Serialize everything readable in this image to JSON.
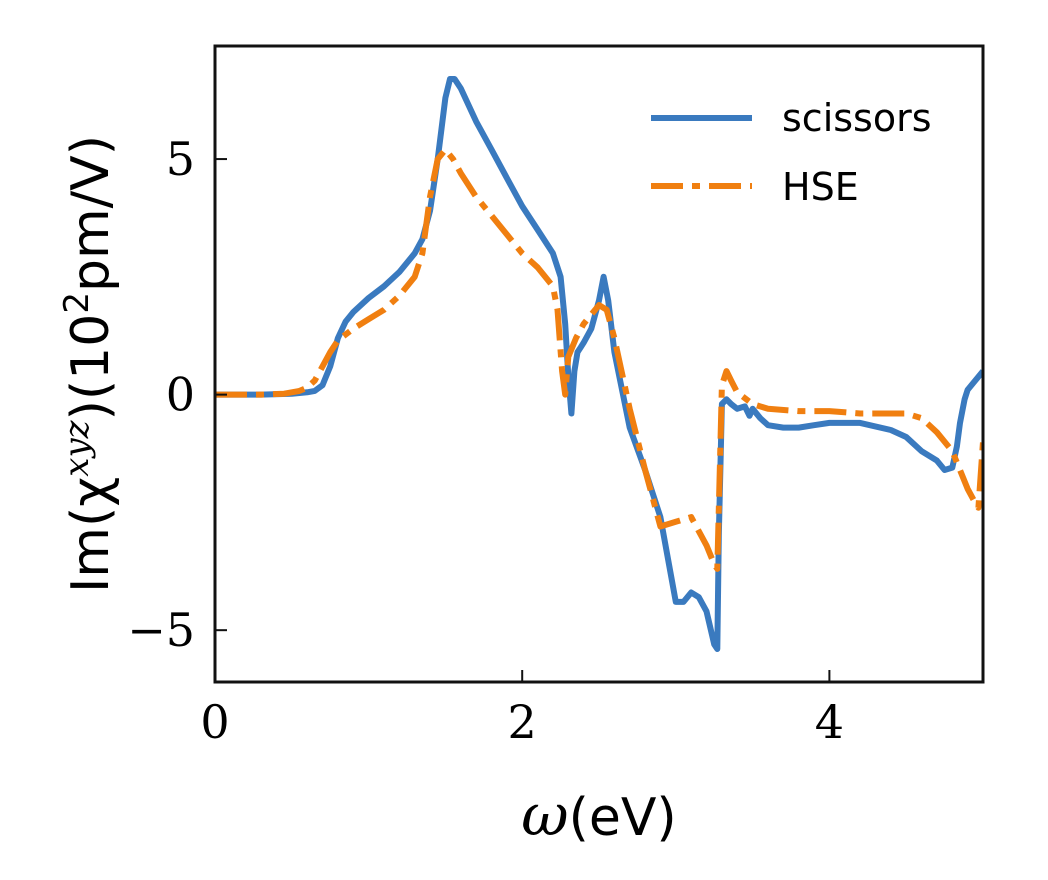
{
  "chart_data": {
    "type": "line",
    "xlabel": "ω(eV)",
    "ylabel": "Im(χ^xyz)(10²pm/V)",
    "ylabel_parts": {
      "prefix": "Im(χ",
      "sup": "xyz",
      "mid": ")(10",
      "sup2": "2",
      "suffix": "pm/V)"
    },
    "xlabel_parts": {
      "symbol": "ω",
      "unit": "(eV)"
    },
    "xlim": [
      0,
      5
    ],
    "ylim": [
      -6.1,
      7.4
    ],
    "xticks": [
      0,
      2,
      4
    ],
    "xtick_labels": [
      "0",
      "2",
      "4"
    ],
    "yticks": [
      -5,
      0,
      5
    ],
    "ytick_labels": [
      "−5",
      "0",
      "5"
    ],
    "grid": false,
    "legend_position": "top-right",
    "series": [
      {
        "name": "scissors",
        "color": "#3a7abf",
        "style": "solid",
        "x": [
          0,
          0.3,
          0.5,
          0.6,
          0.65,
          0.7,
          0.75,
          0.8,
          0.85,
          0.9,
          1.0,
          1.1,
          1.2,
          1.3,
          1.35,
          1.4,
          1.45,
          1.5,
          1.53,
          1.56,
          1.6,
          1.7,
          1.8,
          1.9,
          2.0,
          2.1,
          2.2,
          2.25,
          2.28,
          2.3,
          2.32,
          2.34,
          2.36,
          2.38,
          2.4,
          2.45,
          2.5,
          2.53,
          2.56,
          2.6,
          2.7,
          2.8,
          2.9,
          2.95,
          3.0,
          3.05,
          3.1,
          3.15,
          3.2,
          3.25,
          3.27,
          3.28,
          3.3,
          3.33,
          3.36,
          3.4,
          3.45,
          3.48,
          3.5,
          3.55,
          3.6,
          3.7,
          3.8,
          3.9,
          4.0,
          4.2,
          4.4,
          4.5,
          4.6,
          4.7,
          4.75,
          4.8,
          4.83,
          4.85,
          4.88,
          4.9,
          4.95,
          5.0
        ],
        "y": [
          0,
          0,
          0.02,
          0.05,
          0.08,
          0.2,
          0.6,
          1.2,
          1.55,
          1.75,
          2.05,
          2.3,
          2.6,
          3.0,
          3.3,
          3.9,
          5.0,
          6.3,
          6.7,
          6.7,
          6.5,
          5.8,
          5.2,
          4.6,
          4.0,
          3.5,
          3.0,
          2.5,
          1.5,
          0.4,
          -0.4,
          0.5,
          0.9,
          1.0,
          1.1,
          1.4,
          2.0,
          2.5,
          2.0,
          0.9,
          -0.7,
          -1.6,
          -2.6,
          -3.5,
          -4.4,
          -4.4,
          -4.2,
          -4.3,
          -4.6,
          -5.3,
          -5.4,
          -3.0,
          -0.2,
          -0.1,
          -0.2,
          -0.3,
          -0.25,
          -0.45,
          -0.3,
          -0.5,
          -0.65,
          -0.7,
          -0.7,
          -0.65,
          -0.6,
          -0.6,
          -0.75,
          -0.9,
          -1.2,
          -1.4,
          -1.6,
          -1.55,
          -1.1,
          -0.6,
          -0.1,
          0.1,
          0.3,
          0.5
        ]
      },
      {
        "name": "HSE",
        "color": "#f07f10",
        "style": "dashdot",
        "x": [
          0,
          0.3,
          0.45,
          0.55,
          0.6,
          0.65,
          0.7,
          0.75,
          0.8,
          0.9,
          1.0,
          1.1,
          1.2,
          1.3,
          1.35,
          1.4,
          1.45,
          1.5,
          1.55,
          1.6,
          1.7,
          1.8,
          1.9,
          2.0,
          2.1,
          2.15,
          2.2,
          2.23,
          2.26,
          2.28,
          2.3,
          2.35,
          2.4,
          2.45,
          2.5,
          2.55,
          2.6,
          2.7,
          2.8,
          2.85,
          2.9,
          3.0,
          3.1,
          3.15,
          3.2,
          3.25,
          3.27,
          3.3,
          3.33,
          3.36,
          3.4,
          3.5,
          3.6,
          3.8,
          4.0,
          4.2,
          4.4,
          4.5,
          4.6,
          4.7,
          4.8,
          4.85,
          4.9,
          4.95,
          4.97,
          5.0
        ],
        "y": [
          0,
          0,
          0.02,
          0.08,
          0.15,
          0.3,
          0.6,
          0.9,
          1.15,
          1.4,
          1.6,
          1.8,
          2.1,
          2.5,
          3.0,
          4.2,
          5.0,
          5.2,
          5.0,
          4.7,
          4.2,
          3.8,
          3.4,
          3.0,
          2.7,
          2.5,
          2.3,
          1.8,
          0.5,
          0.0,
          0.8,
          1.2,
          1.5,
          1.7,
          1.9,
          1.8,
          1.2,
          -0.3,
          -1.6,
          -2.2,
          -2.8,
          -2.7,
          -2.6,
          -2.9,
          -3.2,
          -3.6,
          -3.7,
          0.2,
          0.5,
          0.3,
          0.05,
          -0.2,
          -0.3,
          -0.35,
          -0.35,
          -0.4,
          -0.4,
          -0.4,
          -0.5,
          -0.8,
          -1.2,
          -1.6,
          -2.0,
          -2.3,
          -2.4,
          -1.0
        ]
      }
    ]
  }
}
